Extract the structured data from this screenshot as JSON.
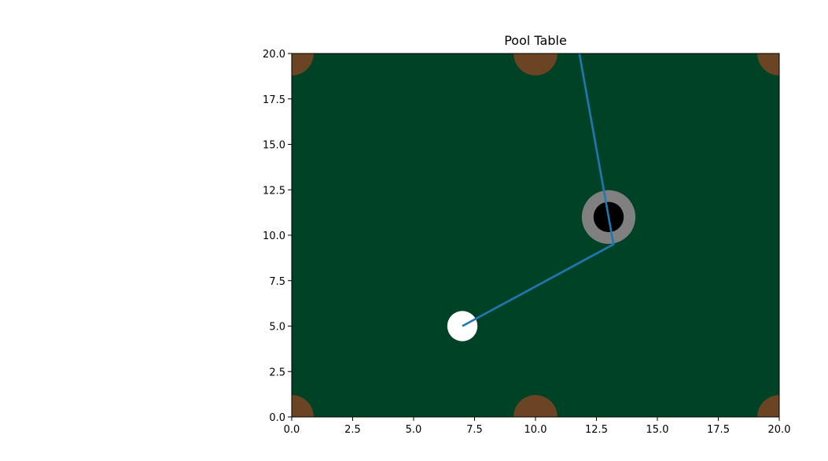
{
  "chart_data": {
    "type": "scatter",
    "title": "Pool Table",
    "xlabel": "",
    "ylabel": "",
    "xlim": [
      0,
      20
    ],
    "ylim": [
      0,
      20
    ],
    "grid": false,
    "x_ticks": [
      "0.0",
      "2.5",
      "5.0",
      "7.5",
      "10.0",
      "12.5",
      "15.0",
      "17.5",
      "20.0"
    ],
    "y_ticks": [
      "0.0",
      "2.5",
      "5.0",
      "7.5",
      "10.0",
      "12.5",
      "15.0",
      "17.5",
      "20.0"
    ],
    "table_color": "#004225",
    "pockets": {
      "color": "#6b4423",
      "radius": 0.9,
      "points": [
        {
          "x": 0,
          "y": 0
        },
        {
          "x": 10,
          "y": 0
        },
        {
          "x": 20,
          "y": 0
        },
        {
          "x": 0,
          "y": 20
        },
        {
          "x": 10,
          "y": 20
        },
        {
          "x": 20,
          "y": 20
        }
      ]
    },
    "cue_ball": {
      "x": 7,
      "y": 5,
      "radius": 0.62,
      "color": "#ffffff"
    },
    "target_ball": {
      "x": 13,
      "y": 11,
      "outer_radius": 1.1,
      "outer_color": "#808080",
      "inner_radius": 0.62,
      "inner_color": "#000000"
    },
    "path": {
      "color": "#1f77b4",
      "points": [
        {
          "x": 7,
          "y": 5
        },
        {
          "x": 13.2,
          "y": 9.5
        },
        {
          "x": 11.8,
          "y": 20
        }
      ]
    }
  }
}
